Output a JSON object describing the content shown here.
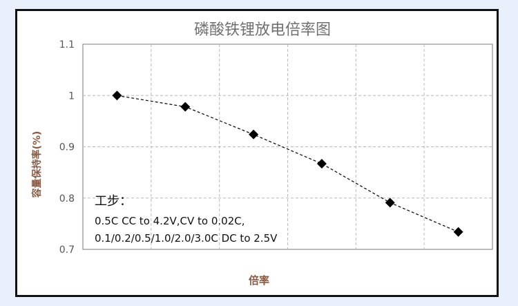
{
  "chart_data": {
    "type": "line",
    "title": "磷酸铁锂放电倍率图",
    "xlabel": "倍率",
    "ylabel": "容量保持率(%)",
    "ylim": [
      0.7,
      1.1
    ],
    "yticks": [
      "1.1",
      "1",
      "0.9",
      "0.8",
      "0.7"
    ],
    "x": [
      1,
      2,
      3,
      4,
      5,
      6
    ],
    "values": [
      1.0,
      0.978,
      0.924,
      0.867,
      0.791,
      0.734
    ],
    "grid": true,
    "marker": "diamond",
    "line_style": "dashed",
    "colors": {
      "line": "#111111",
      "marker": "#000000",
      "grid": "#b8b8b8",
      "axis_label": "#8a5a40"
    },
    "annotation": {
      "heading": "工步：",
      "line1": "0.5C CC to 4.2V,CV to 0.02C,",
      "line2": "0.1/0.2/0.5/1.0/2.0/3.0C DC to 2.5V"
    }
  }
}
